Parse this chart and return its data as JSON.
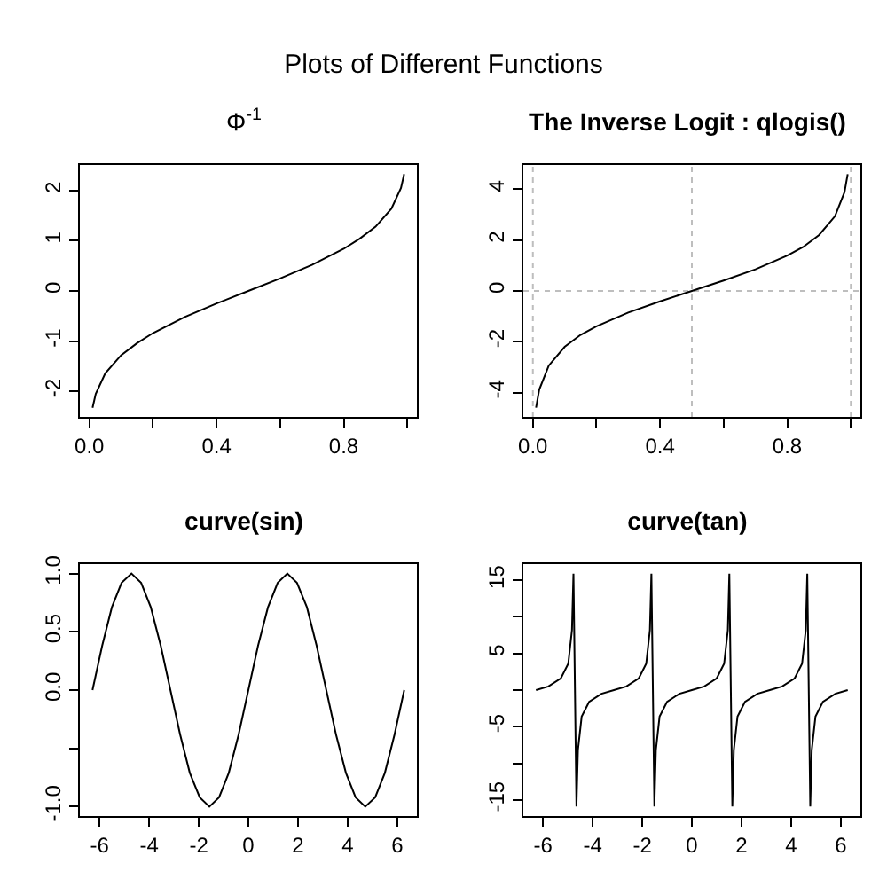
{
  "chart_data": [
    {
      "type": "other",
      "title": "Plots of Different Functions"
    },
    {
      "type": "line",
      "title": "Φ$^{-1}$",
      "color": "#000000",
      "line_style": "solid",
      "x": [
        0.01,
        0.02,
        0.05,
        0.1,
        0.15,
        0.2,
        0.3,
        0.4,
        0.5,
        0.6,
        0.7,
        0.8,
        0.85,
        0.9,
        0.95,
        0.98,
        0.99
      ],
      "values": [
        -2.33,
        -2.05,
        -1.64,
        -1.28,
        -1.04,
        -0.84,
        -0.52,
        -0.25,
        0,
        0.25,
        0.52,
        0.84,
        1.04,
        1.28,
        1.64,
        2.05,
        2.33
      ],
      "xlim": [
        -0.03,
        1.03
      ],
      "ylim": [
        -2.51,
        2.51
      ],
      "xticks": [
        {
          "value": 0,
          "label": "0.0"
        },
        {
          "value": 0.2,
          "label": null
        },
        {
          "value": 0.4,
          "label": "0.4"
        },
        {
          "value": 0.6,
          "label": null
        },
        {
          "value": 0.8,
          "label": "0.8"
        },
        {
          "value": 1,
          "label": null
        }
      ],
      "yticks": [
        -2,
        -1,
        0,
        1,
        2
      ]
    },
    {
      "type": "line",
      "title": "The Inverse Logit : qlogis()",
      "color": "#000000",
      "line_style": "solid",
      "x": [
        0.01,
        0.02,
        0.05,
        0.1,
        0.15,
        0.2,
        0.3,
        0.4,
        0.5,
        0.6,
        0.7,
        0.8,
        0.85,
        0.9,
        0.95,
        0.98,
        0.99
      ],
      "values": [
        -4.6,
        -3.89,
        -2.94,
        -2.2,
        -1.73,
        -1.39,
        -0.85,
        -0.41,
        0,
        0.41,
        0.85,
        1.39,
        1.73,
        2.2,
        2.94,
        3.89,
        4.6
      ],
      "xlim": [
        -0.03,
        1.03
      ],
      "ylim": [
        -4.96,
        4.96
      ],
      "xticks": [
        {
          "value": 0,
          "label": "0.0"
        },
        {
          "value": 0.2,
          "label": null
        },
        {
          "value": 0.4,
          "label": "0.4"
        },
        {
          "value": 0.6,
          "label": null
        },
        {
          "value": 0.8,
          "label": "0.8"
        },
        {
          "value": 1,
          "label": null
        }
      ],
      "yticks": [
        -4,
        -2,
        0,
        2,
        4
      ],
      "ref_lines": [
        {
          "axis": "x",
          "value": 0,
          "color": "#bebebe",
          "line_style": "dotted"
        },
        {
          "axis": "x",
          "value": 0.5,
          "color": "#bebebe",
          "line_style": "dotted"
        },
        {
          "axis": "x",
          "value": 1,
          "color": "#bebebe",
          "line_style": "dotted"
        },
        {
          "axis": "y",
          "value": 0,
          "color": "#bebebe",
          "line_style": "dotted"
        }
      ]
    },
    {
      "type": "line",
      "title": "curve(sin)",
      "color": "#000000",
      "line_style": "solid",
      "x": [
        -6.28,
        -5.89,
        -5.5,
        -5.11,
        -4.71,
        -4.32,
        -3.93,
        -3.53,
        -3.14,
        -2.75,
        -2.36,
        -1.96,
        -1.57,
        -1.18,
        -0.79,
        -0.39,
        0,
        0.39,
        0.79,
        1.18,
        1.57,
        1.96,
        2.36,
        2.75,
        3.14,
        3.53,
        3.93,
        4.32,
        4.71,
        5.11,
        5.5,
        5.89,
        6.28
      ],
      "values": [
        0,
        0.38,
        0.71,
        0.92,
        1,
        0.92,
        0.71,
        0.38,
        0,
        -0.38,
        -0.71,
        -0.92,
        -1,
        -0.92,
        -0.71,
        -0.38,
        0,
        0.38,
        0.71,
        0.92,
        1,
        0.92,
        0.71,
        0.38,
        0,
        -0.38,
        -0.71,
        -0.92,
        -1,
        -0.92,
        -0.71,
        -0.38,
        0
      ],
      "xlim": [
        -6.79,
        6.79
      ],
      "ylim": [
        -1.08,
        1.08
      ],
      "xticks": [
        -6,
        -4,
        -2,
        0,
        2,
        4,
        6
      ],
      "yticks": [
        {
          "value": -1,
          "label": "-1.0"
        },
        {
          "value": -0.5,
          "label": null
        },
        {
          "value": 0,
          "label": "0.0"
        },
        {
          "value": 0.5,
          "label": "0.5"
        },
        {
          "value": 1,
          "label": "1.0"
        }
      ]
    },
    {
      "type": "line",
      "title": "curve(tan)",
      "color": "#000000",
      "line_style": "solid",
      "x": [
        -6.28,
        -5.78,
        -5.28,
        -4.98,
        -4.83,
        -4.77,
        -4.65,
        -4.59,
        -4.44,
        -4.14,
        -3.64,
        -3.14,
        -2.64,
        -2.14,
        -1.84,
        -1.69,
        -1.63,
        -1.51,
        -1.45,
        -1.3,
        -1,
        -0.5,
        0,
        0.5,
        1,
        1.3,
        1.45,
        1.51,
        1.63,
        1.69,
        1.84,
        2.14,
        2.64,
        3.14,
        3.64,
        4.14,
        4.44,
        4.59,
        4.65,
        4.77,
        4.83,
        4.98,
        5.28,
        5.78,
        6.28
      ],
      "values": [
        0,
        0.5,
        1.6,
        3.6,
        8.2,
        15.9,
        -15.9,
        -8.2,
        -3.6,
        -1.6,
        -0.5,
        0,
        0.5,
        1.6,
        3.6,
        8.2,
        15.9,
        -15.9,
        -8.2,
        -3.6,
        -1.6,
        -0.5,
        0,
        0.5,
        1.6,
        3.6,
        8.2,
        15.9,
        -15.9,
        -8.2,
        -3.6,
        -1.6,
        -0.5,
        0,
        0.5,
        1.6,
        3.6,
        8.2,
        15.9,
        -15.9,
        -8.2,
        -3.6,
        -1.6,
        -0.5,
        0
      ],
      "xlim": [
        -6.79,
        6.79
      ],
      "ylim": [
        -17.2,
        17.2
      ],
      "xticks": [
        -6,
        -4,
        -2,
        0,
        2,
        4,
        6
      ],
      "yticks": [
        -15,
        {
          "value": -10,
          "label": null
        },
        -5,
        {
          "value": 0,
          "label": null
        },
        5,
        {
          "value": 10,
          "label": null
        },
        15
      ]
    }
  ]
}
